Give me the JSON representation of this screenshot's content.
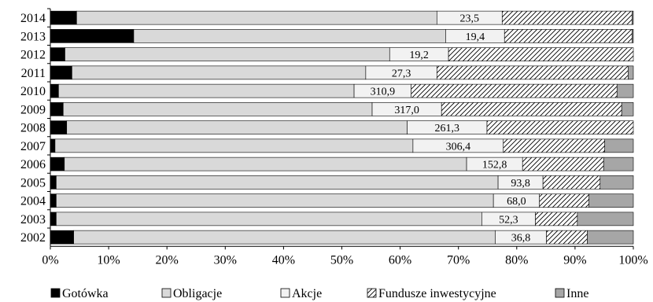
{
  "chart_data": {
    "type": "bar",
    "orientation": "horizontal",
    "stacked": "percent",
    "xlim": [
      0,
      100
    ],
    "x_ticks": [
      "0%",
      "10%",
      "20%",
      "30%",
      "40%",
      "50%",
      "60%",
      "70%",
      "80%",
      "90%",
      "100%"
    ],
    "categories": [
      "2014",
      "2013",
      "2012",
      "2011",
      "2010",
      "2009",
      "2008",
      "2007",
      "2006",
      "2005",
      "2004",
      "2003",
      "2002"
    ],
    "series": [
      {
        "name": "Gotówka",
        "color": "#000000",
        "pattern": "solid",
        "values": [
          4.5,
          14.3,
          2.5,
          3.7,
          1.4,
          2.2,
          2.8,
          0.8,
          2.4,
          1.0,
          1.0,
          1.0,
          4.0
        ]
      },
      {
        "name": "Obligacje",
        "color": "#d9d9d9",
        "pattern": "solid",
        "values": [
          61.8,
          53.5,
          55.7,
          50.4,
          50.7,
          53.0,
          58.4,
          61.4,
          69.0,
          75.8,
          75.0,
          73.0,
          72.3
        ]
      },
      {
        "name": "Akcje",
        "color": "#f2f2f2",
        "pattern": "solid",
        "values": [
          11.2,
          10.1,
          10.1,
          12.2,
          9.8,
          11.9,
          13.7,
          15.5,
          9.6,
          7.7,
          7.9,
          9.2,
          8.8
        ]
      },
      {
        "name": "Fundusze inwestycyjne",
        "color": "#ffffff",
        "pattern": "diagonal-hatch",
        "values": [
          22.3,
          21.9,
          31.7,
          32.8,
          35.3,
          30.9,
          25.1,
          17.4,
          13.9,
          9.8,
          8.5,
          7.2,
          7.0
        ]
      },
      {
        "name": "Inne",
        "color": "#a6a6a6",
        "pattern": "solid",
        "values": [
          0.2,
          0.2,
          0.0,
          0.9,
          2.8,
          2.0,
          0.0,
          4.9,
          5.1,
          5.7,
          7.6,
          9.6,
          7.9
        ]
      }
    ],
    "data_labels": [
      "23,5",
      "19,4",
      "19,2",
      "27,3",
      "310,9",
      "317,0",
      "261,3",
      "306,4",
      "152,8",
      "93,8",
      "68,0",
      "52,3",
      "36,8"
    ],
    "data_label_series": "Akcje",
    "legend": "bottom",
    "grid": false
  }
}
